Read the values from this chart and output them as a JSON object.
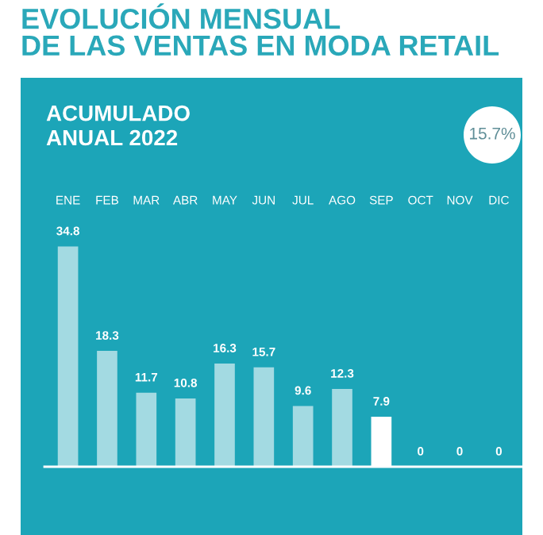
{
  "chart_data": {
    "type": "bar",
    "title": "EVOLUCIÓN MENSUAL\nDE LAS VENTAS EN MODA RETAIL",
    "subtitle": "ACUMULADO\nANUAL 2022",
    "annotations": [
      "15.7%"
    ],
    "categories": [
      "ENE",
      "FEB",
      "MAR",
      "ABR",
      "MAY",
      "JUN",
      "JUL",
      "AGO",
      "SEP",
      "OCT",
      "NOV",
      "DIC"
    ],
    "values": [
      34.8,
      18.3,
      11.7,
      10.8,
      16.3,
      15.7,
      9.6,
      12.3,
      7.9,
      0,
      0,
      0
    ],
    "colors": [
      "#a3dae2",
      "#a3dae2",
      "#a3dae2",
      "#a3dae2",
      "#a3dae2",
      "#a3dae2",
      "#a3dae2",
      "#a3dae2",
      "#ffffff",
      "#a3dae2",
      "#a3dae2",
      "#a3dae2"
    ],
    "data_labels": true
  }
}
